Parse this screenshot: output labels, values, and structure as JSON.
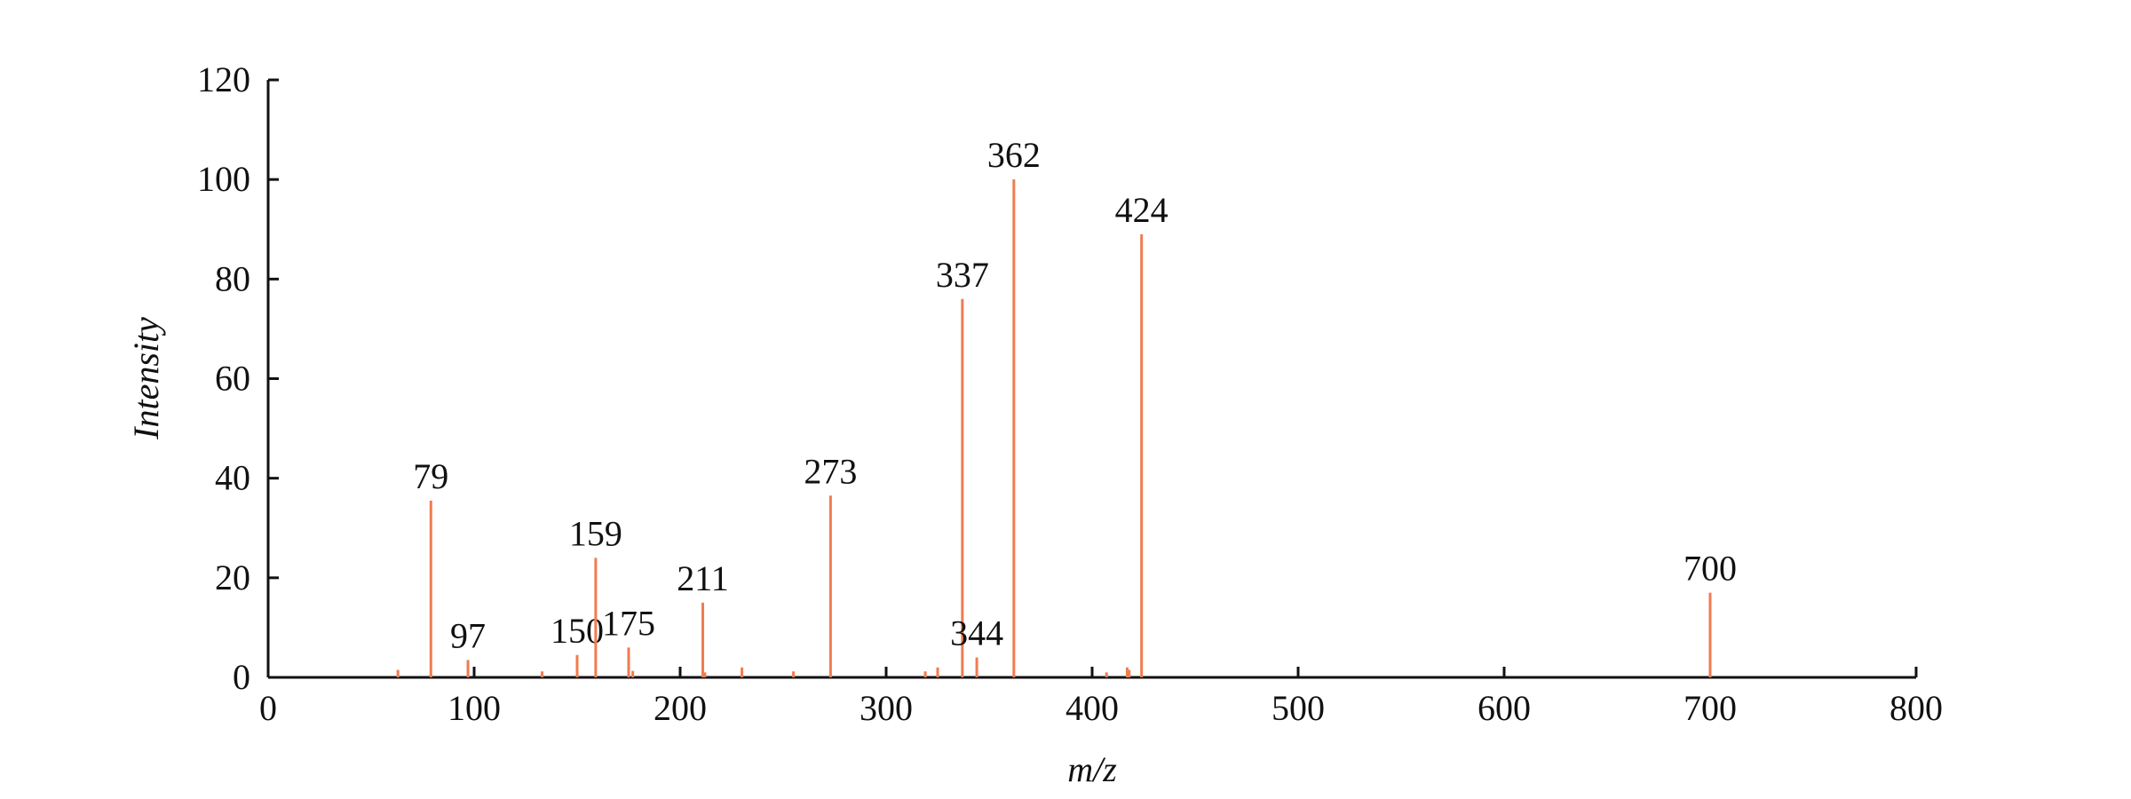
{
  "chart_data": {
    "type": "stem",
    "x_label": "m/z",
    "y_label": "Intensity",
    "x": [
      79,
      97,
      150,
      159,
      175,
      211,
      273,
      337,
      344,
      362,
      424,
      700
    ],
    "values": [
      35.5,
      3.5,
      4.5,
      24,
      6,
      15,
      36.5,
      76,
      4,
      100,
      89,
      17
    ],
    "minor_x": [
      63,
      133,
      177,
      212,
      230,
      255,
      319,
      325,
      407,
      417,
      418
    ],
    "minor_values": [
      1.5,
      1.2,
      1.3,
      1,
      2,
      1.2,
      1.2,
      2,
      1,
      2,
      1.5
    ],
    "color": "#f07c50",
    "xlim": [
      0,
      800
    ],
    "xticks": [
      0,
      100,
      200,
      300,
      400,
      500,
      600,
      700,
      800
    ],
    "ylim": [
      0,
      120
    ],
    "yticks": [
      0,
      20,
      40,
      60,
      80,
      100,
      120
    ]
  }
}
